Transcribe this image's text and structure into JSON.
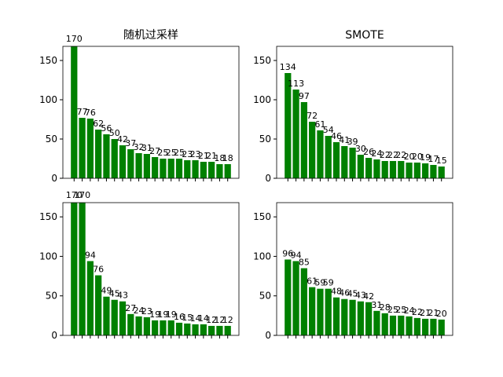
{
  "chart_data": [
    {
      "type": "bar",
      "title": "随机过采样",
      "categories": [
        null,
        null,
        null,
        null,
        null,
        null,
        null,
        null,
        null,
        null,
        null,
        null,
        null,
        null,
        null,
        null,
        null,
        null,
        null,
        null
      ],
      "values": [
        170,
        77,
        76,
        62,
        56,
        50,
        42,
        37,
        32,
        31,
        27,
        25,
        25,
        25,
        23,
        23,
        21,
        21,
        18,
        18
      ],
      "color": "#008000",
      "ylim": [
        0,
        168
      ],
      "yticks": [
        0,
        50,
        100,
        150
      ]
    },
    {
      "type": "bar",
      "title": "SMOTE",
      "categories": [
        null,
        null,
        null,
        null,
        null,
        null,
        null,
        null,
        null,
        null,
        null,
        null,
        null,
        null,
        null,
        null,
        null,
        null,
        null,
        null
      ],
      "values": [
        134,
        113,
        97,
        72,
        61,
        54,
        46,
        41,
        39,
        30,
        26,
        24,
        22,
        22,
        22,
        20,
        20,
        19,
        17,
        15
      ],
      "color": "#008000",
      "ylim": [
        0,
        168
      ],
      "yticks": [
        0,
        50,
        100,
        150
      ]
    },
    {
      "type": "bar",
      "categories": [
        null,
        null,
        null,
        null,
        null,
        null,
        null,
        null,
        null,
        null,
        null,
        null,
        null,
        null,
        null,
        null,
        null,
        null,
        null,
        null
      ],
      "values": [
        170,
        170,
        94,
        76,
        49,
        45,
        43,
        27,
        24,
        23,
        19,
        19,
        19,
        16,
        15,
        14,
        14,
        12,
        12,
        12
      ],
      "color": "#008000",
      "ylim": [
        0,
        168
      ],
      "yticks": [
        0,
        50,
        100,
        150
      ]
    },
    {
      "type": "bar",
      "categories": [
        null,
        null,
        null,
        null,
        null,
        null,
        null,
        null,
        null,
        null,
        null,
        null,
        null,
        null,
        null,
        null,
        null,
        null,
        null,
        null
      ],
      "values": [
        96,
        94,
        85,
        61,
        59,
        59,
        48,
        46,
        45,
        43,
        42,
        31,
        28,
        25,
        25,
        24,
        22,
        21,
        21,
        20
      ],
      "color": "#008000",
      "ylim": [
        0,
        168
      ],
      "yticks": [
        0,
        50,
        100,
        150
      ]
    }
  ]
}
